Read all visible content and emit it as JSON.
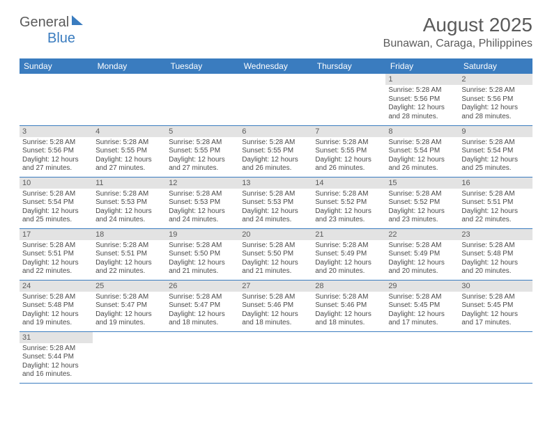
{
  "logo": {
    "text1": "General",
    "text2": "Blue"
  },
  "title": "August 2025",
  "location": "Bunawan, Caraga, Philippines",
  "colors": {
    "header_bg": "#3a7cbf",
    "header_text": "#ffffff",
    "daynum_bg": "#e3e3e3",
    "text": "#5a5a5a",
    "page_bg": "#ffffff"
  },
  "weekdays": [
    "Sunday",
    "Monday",
    "Tuesday",
    "Wednesday",
    "Thursday",
    "Friday",
    "Saturday"
  ],
  "weeks": [
    [
      {
        "day": "",
        "lines": []
      },
      {
        "day": "",
        "lines": []
      },
      {
        "day": "",
        "lines": []
      },
      {
        "day": "",
        "lines": []
      },
      {
        "day": "",
        "lines": []
      },
      {
        "day": "1",
        "lines": [
          "Sunrise: 5:28 AM",
          "Sunset: 5:56 PM",
          "Daylight: 12 hours",
          "and 28 minutes."
        ]
      },
      {
        "day": "2",
        "lines": [
          "Sunrise: 5:28 AM",
          "Sunset: 5:56 PM",
          "Daylight: 12 hours",
          "and 28 minutes."
        ]
      }
    ],
    [
      {
        "day": "3",
        "lines": [
          "Sunrise: 5:28 AM",
          "Sunset: 5:56 PM",
          "Daylight: 12 hours",
          "and 27 minutes."
        ]
      },
      {
        "day": "4",
        "lines": [
          "Sunrise: 5:28 AM",
          "Sunset: 5:55 PM",
          "Daylight: 12 hours",
          "and 27 minutes."
        ]
      },
      {
        "day": "5",
        "lines": [
          "Sunrise: 5:28 AM",
          "Sunset: 5:55 PM",
          "Daylight: 12 hours",
          "and 27 minutes."
        ]
      },
      {
        "day": "6",
        "lines": [
          "Sunrise: 5:28 AM",
          "Sunset: 5:55 PM",
          "Daylight: 12 hours",
          "and 26 minutes."
        ]
      },
      {
        "day": "7",
        "lines": [
          "Sunrise: 5:28 AM",
          "Sunset: 5:55 PM",
          "Daylight: 12 hours",
          "and 26 minutes."
        ]
      },
      {
        "day": "8",
        "lines": [
          "Sunrise: 5:28 AM",
          "Sunset: 5:54 PM",
          "Daylight: 12 hours",
          "and 26 minutes."
        ]
      },
      {
        "day": "9",
        "lines": [
          "Sunrise: 5:28 AM",
          "Sunset: 5:54 PM",
          "Daylight: 12 hours",
          "and 25 minutes."
        ]
      }
    ],
    [
      {
        "day": "10",
        "lines": [
          "Sunrise: 5:28 AM",
          "Sunset: 5:54 PM",
          "Daylight: 12 hours",
          "and 25 minutes."
        ]
      },
      {
        "day": "11",
        "lines": [
          "Sunrise: 5:28 AM",
          "Sunset: 5:53 PM",
          "Daylight: 12 hours",
          "and 24 minutes."
        ]
      },
      {
        "day": "12",
        "lines": [
          "Sunrise: 5:28 AM",
          "Sunset: 5:53 PM",
          "Daylight: 12 hours",
          "and 24 minutes."
        ]
      },
      {
        "day": "13",
        "lines": [
          "Sunrise: 5:28 AM",
          "Sunset: 5:53 PM",
          "Daylight: 12 hours",
          "and 24 minutes."
        ]
      },
      {
        "day": "14",
        "lines": [
          "Sunrise: 5:28 AM",
          "Sunset: 5:52 PM",
          "Daylight: 12 hours",
          "and 23 minutes."
        ]
      },
      {
        "day": "15",
        "lines": [
          "Sunrise: 5:28 AM",
          "Sunset: 5:52 PM",
          "Daylight: 12 hours",
          "and 23 minutes."
        ]
      },
      {
        "day": "16",
        "lines": [
          "Sunrise: 5:28 AM",
          "Sunset: 5:51 PM",
          "Daylight: 12 hours",
          "and 22 minutes."
        ]
      }
    ],
    [
      {
        "day": "17",
        "lines": [
          "Sunrise: 5:28 AM",
          "Sunset: 5:51 PM",
          "Daylight: 12 hours",
          "and 22 minutes."
        ]
      },
      {
        "day": "18",
        "lines": [
          "Sunrise: 5:28 AM",
          "Sunset: 5:51 PM",
          "Daylight: 12 hours",
          "and 22 minutes."
        ]
      },
      {
        "day": "19",
        "lines": [
          "Sunrise: 5:28 AM",
          "Sunset: 5:50 PM",
          "Daylight: 12 hours",
          "and 21 minutes."
        ]
      },
      {
        "day": "20",
        "lines": [
          "Sunrise: 5:28 AM",
          "Sunset: 5:50 PM",
          "Daylight: 12 hours",
          "and 21 minutes."
        ]
      },
      {
        "day": "21",
        "lines": [
          "Sunrise: 5:28 AM",
          "Sunset: 5:49 PM",
          "Daylight: 12 hours",
          "and 20 minutes."
        ]
      },
      {
        "day": "22",
        "lines": [
          "Sunrise: 5:28 AM",
          "Sunset: 5:49 PM",
          "Daylight: 12 hours",
          "and 20 minutes."
        ]
      },
      {
        "day": "23",
        "lines": [
          "Sunrise: 5:28 AM",
          "Sunset: 5:48 PM",
          "Daylight: 12 hours",
          "and 20 minutes."
        ]
      }
    ],
    [
      {
        "day": "24",
        "lines": [
          "Sunrise: 5:28 AM",
          "Sunset: 5:48 PM",
          "Daylight: 12 hours",
          "and 19 minutes."
        ]
      },
      {
        "day": "25",
        "lines": [
          "Sunrise: 5:28 AM",
          "Sunset: 5:47 PM",
          "Daylight: 12 hours",
          "and 19 minutes."
        ]
      },
      {
        "day": "26",
        "lines": [
          "Sunrise: 5:28 AM",
          "Sunset: 5:47 PM",
          "Daylight: 12 hours",
          "and 18 minutes."
        ]
      },
      {
        "day": "27",
        "lines": [
          "Sunrise: 5:28 AM",
          "Sunset: 5:46 PM",
          "Daylight: 12 hours",
          "and 18 minutes."
        ]
      },
      {
        "day": "28",
        "lines": [
          "Sunrise: 5:28 AM",
          "Sunset: 5:46 PM",
          "Daylight: 12 hours",
          "and 18 minutes."
        ]
      },
      {
        "day": "29",
        "lines": [
          "Sunrise: 5:28 AM",
          "Sunset: 5:45 PM",
          "Daylight: 12 hours",
          "and 17 minutes."
        ]
      },
      {
        "day": "30",
        "lines": [
          "Sunrise: 5:28 AM",
          "Sunset: 5:45 PM",
          "Daylight: 12 hours",
          "and 17 minutes."
        ]
      }
    ],
    [
      {
        "day": "31",
        "lines": [
          "Sunrise: 5:28 AM",
          "Sunset: 5:44 PM",
          "Daylight: 12 hours",
          "and 16 minutes."
        ]
      },
      {
        "day": "",
        "lines": []
      },
      {
        "day": "",
        "lines": []
      },
      {
        "day": "",
        "lines": []
      },
      {
        "day": "",
        "lines": []
      },
      {
        "day": "",
        "lines": []
      },
      {
        "day": "",
        "lines": []
      }
    ]
  ]
}
